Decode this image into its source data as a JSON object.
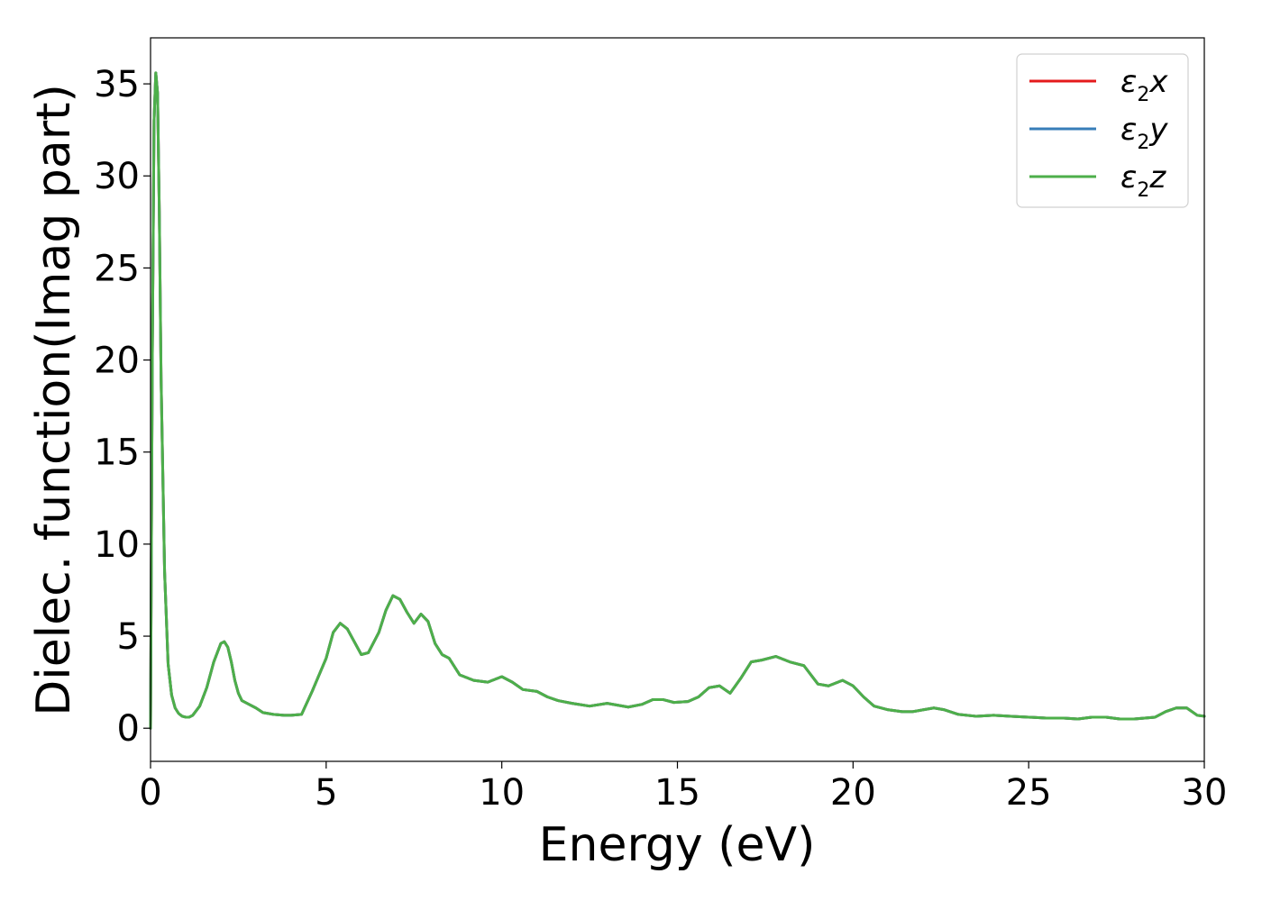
{
  "chart_data": {
    "type": "line",
    "xlabel": "Energy (eV)",
    "ylabel": "Dielec. function(Imag part)",
    "xlim": [
      0,
      30
    ],
    "ylim": [
      -1.8,
      37.5
    ],
    "xticks": [
      0,
      5,
      10,
      15,
      20,
      25,
      30
    ],
    "yticks": [
      0,
      5,
      10,
      15,
      20,
      25,
      30,
      35
    ],
    "grid": false,
    "legend_position": "top-right",
    "series": [
      {
        "name": "ε2x",
        "symbol": "ε",
        "sub": "2",
        "axis": "x",
        "color": "#e41a1c"
      },
      {
        "name": "ε2y",
        "symbol": "ε",
        "sub": "2",
        "axis": "y",
        "color": "#377eb8"
      },
      {
        "name": "ε2z",
        "symbol": "ε",
        "sub": "2",
        "axis": "z",
        "color": "#4daf4a"
      }
    ],
    "x": [
      0,
      0.05,
      0.1,
      0.15,
      0.2,
      0.25,
      0.3,
      0.4,
      0.5,
      0.6,
      0.7,
      0.8,
      0.9,
      1.0,
      1.1,
      1.2,
      1.4,
      1.6,
      1.8,
      2.0,
      2.1,
      2.2,
      2.3,
      2.4,
      2.5,
      2.6,
      2.8,
      3.0,
      3.2,
      3.5,
      3.8,
      4.0,
      4.3,
      4.6,
      5.0,
      5.2,
      5.4,
      5.6,
      5.8,
      6.0,
      6.2,
      6.5,
      6.7,
      6.9,
      7.1,
      7.3,
      7.5,
      7.7,
      7.9,
      8.1,
      8.3,
      8.5,
      8.8,
      9.2,
      9.6,
      10.0,
      10.3,
      10.6,
      11.0,
      11.3,
      11.6,
      12.0,
      12.5,
      13.0,
      13.6,
      14.0,
      14.3,
      14.6,
      14.9,
      15.3,
      15.6,
      15.9,
      16.2,
      16.5,
      16.8,
      17.1,
      17.4,
      17.8,
      18.2,
      18.6,
      19.0,
      19.3,
      19.7,
      20.0,
      20.3,
      20.6,
      21.0,
      21.4,
      21.7,
      22.0,
      22.3,
      22.6,
      23.0,
      23.5,
      24.0,
      24.5,
      25.0,
      25.5,
      26.0,
      26.4,
      26.8,
      27.2,
      27.6,
      28.0,
      28.3,
      28.6,
      28.9,
      29.2,
      29.5,
      29.8,
      30.0
    ],
    "values": [
      0,
      20,
      33,
      35.6,
      34.5,
      28,
      19,
      8.5,
      3.5,
      1.8,
      1.1,
      0.8,
      0.65,
      0.6,
      0.6,
      0.7,
      1.2,
      2.2,
      3.6,
      4.6,
      4.7,
      4.4,
      3.6,
      2.6,
      1.9,
      1.5,
      1.3,
      1.1,
      0.85,
      0.75,
      0.7,
      0.7,
      0.75,
      2.0,
      3.8,
      5.2,
      5.7,
      5.4,
      4.7,
      4.0,
      4.1,
      5.2,
      6.4,
      7.2,
      7.0,
      6.3,
      5.7,
      6.2,
      5.8,
      4.6,
      4.0,
      3.8,
      2.9,
      2.6,
      2.5,
      2.8,
      2.5,
      2.1,
      2.0,
      1.7,
      1.5,
      1.35,
      1.2,
      1.35,
      1.15,
      1.3,
      1.55,
      1.55,
      1.4,
      1.45,
      1.7,
      2.2,
      2.3,
      1.9,
      2.7,
      3.6,
      3.7,
      3.9,
      3.6,
      3.4,
      2.4,
      2.3,
      2.6,
      2.3,
      1.7,
      1.2,
      1.0,
      0.9,
      0.9,
      1.0,
      1.1,
      1.0,
      0.75,
      0.65,
      0.7,
      0.65,
      0.6,
      0.55,
      0.55,
      0.5,
      0.6,
      0.6,
      0.5,
      0.5,
      0.55,
      0.6,
      0.9,
      1.1,
      1.1,
      0.7,
      0.65
    ]
  }
}
